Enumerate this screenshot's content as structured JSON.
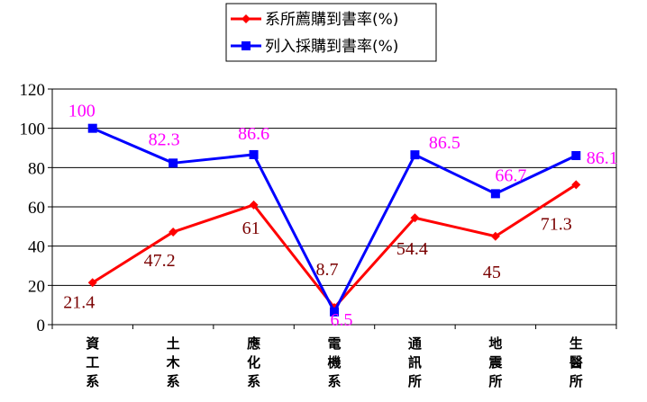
{
  "chart_data": {
    "type": "line",
    "title": "",
    "xlabel": "",
    "ylabel": "",
    "categories": [
      "資工系",
      "土木系",
      "應化系",
      "電機系",
      "通訊所",
      "地震所",
      "生醫所"
    ],
    "ylim": [
      0,
      120
    ],
    "yticks": [
      0,
      20,
      40,
      60,
      80,
      100,
      120
    ],
    "grid": true,
    "legend_placement": "top-center",
    "series": [
      {
        "name": "系所薦購到書率(%)",
        "values": [
          21.4,
          47.2,
          61,
          8.7,
          54.4,
          45,
          71.3
        ],
        "color": "#ff0000",
        "label_color": "#7a0000",
        "marker": "diamond"
      },
      {
        "name": "列入採購到書率(%)",
        "values": [
          100,
          82.3,
          86.6,
          6.5,
          86.5,
          66.7,
          86.1
        ],
        "color": "#0000ff",
        "label_color": "#ff00ff",
        "marker": "square"
      }
    ]
  }
}
